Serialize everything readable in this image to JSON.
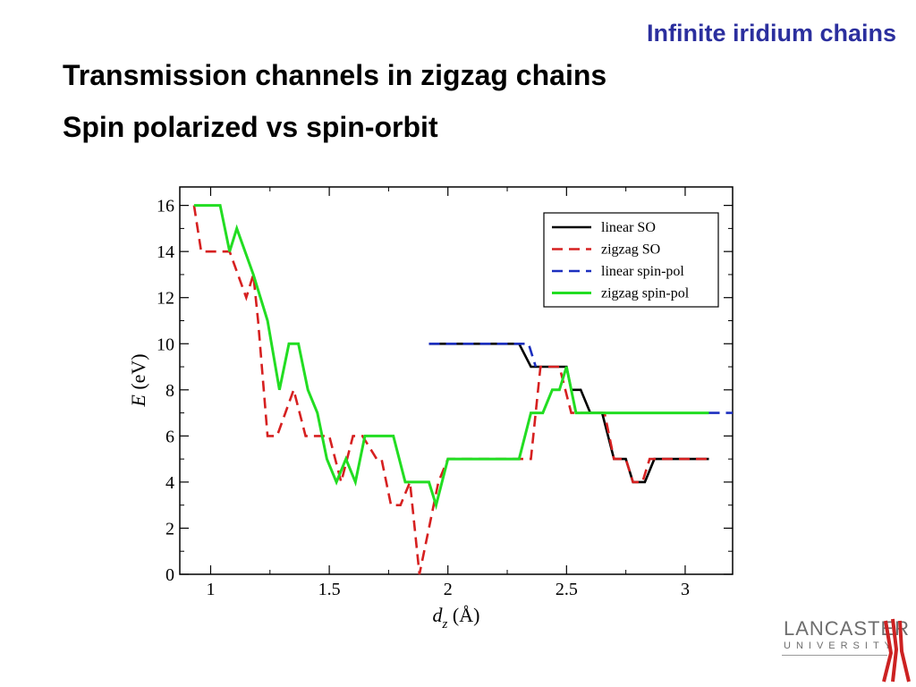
{
  "slide": {
    "header_tag": "Infinite iridium chains",
    "title_line1": "Transmission channels in zigzag chains",
    "title_line2": "Spin polarized vs spin-orbit"
  },
  "logo": {
    "main": "LANCASTER",
    "sub": "UNIVERSITY",
    "color": "#6e6e6e",
    "mark_color": "#cc2222"
  },
  "chart_data": {
    "type": "line",
    "xlabel_main": "d",
    "xlabel_sub": "z",
    "xlabel_unit": " (Å)",
    "ylabel_main": "E",
    "ylabel_unit": " (eV)",
    "xlim": [
      0.87,
      3.2
    ],
    "ylim": [
      0,
      16.8
    ],
    "xticks": [
      {
        "value": 1,
        "label": "1"
      },
      {
        "value": 1.5,
        "label": "1.5"
      },
      {
        "value": 2,
        "label": "2"
      },
      {
        "value": 2.5,
        "label": "2.5"
      },
      {
        "value": 3,
        "label": "3"
      }
    ],
    "yticks": [
      {
        "value": 0,
        "label": "0"
      },
      {
        "value": 2,
        "label": "2"
      },
      {
        "value": 4,
        "label": "4"
      },
      {
        "value": 6,
        "label": "6"
      },
      {
        "value": 8,
        "label": "8"
      },
      {
        "value": 10,
        "label": "10"
      },
      {
        "value": 12,
        "label": "12"
      },
      {
        "value": 14,
        "label": "14"
      },
      {
        "value": 16,
        "label": "16"
      }
    ],
    "legend_position": "top-right",
    "series": [
      {
        "name": "linear SO",
        "color": "#000000",
        "dash": "solid",
        "points": [
          [
            1.92,
            10
          ],
          [
            2.3,
            10
          ],
          [
            2.35,
            9
          ],
          [
            2.5,
            9
          ],
          [
            2.52,
            8
          ],
          [
            2.56,
            8
          ],
          [
            2.6,
            7
          ],
          [
            2.65,
            7
          ],
          [
            2.7,
            5
          ],
          [
            2.75,
            5
          ],
          [
            2.78,
            4
          ],
          [
            2.83,
            4
          ],
          [
            2.87,
            5
          ],
          [
            3.1,
            5
          ]
        ]
      },
      {
        "name": "zigzag SO",
        "color": "#d62020",
        "dash": "dashed",
        "points": [
          [
            0.93,
            16
          ],
          [
            0.96,
            14
          ],
          [
            1.08,
            14
          ],
          [
            1.15,
            12
          ],
          [
            1.18,
            13
          ],
          [
            1.2,
            11
          ],
          [
            1.24,
            6
          ],
          [
            1.28,
            6
          ],
          [
            1.35,
            8
          ],
          [
            1.4,
            6
          ],
          [
            1.5,
            6
          ],
          [
            1.55,
            4
          ],
          [
            1.6,
            6
          ],
          [
            1.64,
            6
          ],
          [
            1.7,
            5
          ],
          [
            1.72,
            5
          ],
          [
            1.76,
            3
          ],
          [
            1.8,
            3
          ],
          [
            1.84,
            4
          ],
          [
            1.86,
            2
          ],
          [
            1.88,
            0
          ],
          [
            1.92,
            2
          ],
          [
            1.96,
            4
          ],
          [
            2.0,
            5
          ],
          [
            2.35,
            5
          ],
          [
            2.39,
            9
          ],
          [
            2.42,
            9
          ],
          [
            2.47,
            9
          ],
          [
            2.52,
            7
          ],
          [
            2.55,
            7
          ],
          [
            2.61,
            7
          ],
          [
            2.66,
            7
          ],
          [
            2.7,
            5
          ],
          [
            2.75,
            5
          ],
          [
            2.78,
            4
          ],
          [
            2.82,
            4
          ],
          [
            2.85,
            5
          ],
          [
            3.1,
            5
          ]
        ]
      },
      {
        "name": "linear spin-pol",
        "color": "#1c2fbf",
        "dash": "dashed",
        "points": [
          [
            1.92,
            10
          ],
          [
            2.34,
            10
          ],
          [
            2.37,
            9
          ]
        ]
      },
      {
        "name": "linear spin-pol",
        "color": "#1c2fbf",
        "dash": "dashed",
        "points": [
          [
            3.1,
            7
          ],
          [
            3.2,
            7
          ]
        ]
      },
      {
        "name": "zigzag spin-pol",
        "color": "#22dd22",
        "dash": "solid",
        "points": [
          [
            0.93,
            16
          ],
          [
            1.04,
            16
          ],
          [
            1.08,
            14
          ],
          [
            1.11,
            15
          ],
          [
            1.18,
            13
          ],
          [
            1.24,
            11
          ],
          [
            1.29,
            8
          ],
          [
            1.33,
            10
          ],
          [
            1.37,
            10
          ],
          [
            1.41,
            8
          ],
          [
            1.45,
            7
          ],
          [
            1.49,
            5
          ],
          [
            1.53,
            4
          ],
          [
            1.57,
            5
          ],
          [
            1.61,
            4
          ],
          [
            1.65,
            6
          ],
          [
            1.77,
            6
          ],
          [
            1.82,
            4
          ],
          [
            1.92,
            4
          ],
          [
            1.95,
            3
          ],
          [
            2.0,
            5
          ],
          [
            2.3,
            5
          ],
          [
            2.35,
            7
          ],
          [
            2.4,
            7
          ],
          [
            2.44,
            8
          ],
          [
            2.47,
            8
          ],
          [
            2.5,
            9
          ],
          [
            2.54,
            7
          ],
          [
            3.1,
            7
          ]
        ]
      }
    ]
  }
}
